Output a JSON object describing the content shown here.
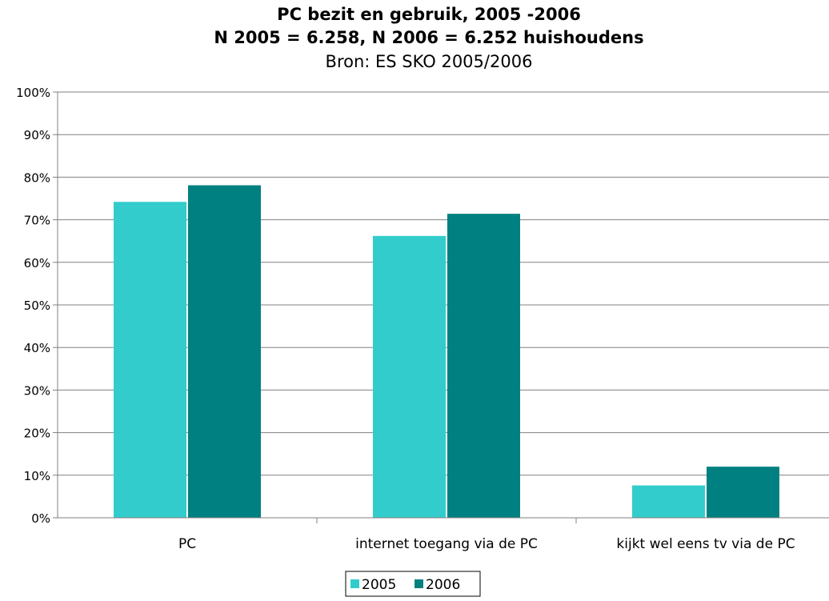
{
  "chart_data": {
    "type": "bar",
    "title": "PC bezit en gebruik, 2005 -2006",
    "subtitle": "N 2005 = 6.258, N 2006 = 6.252 huishoudens",
    "source": "Bron: ES SKO 2005/2006",
    "categories": [
      "PC",
      "internet toegang via de PC",
      "kijkt wel eens tv via de PC"
    ],
    "series": [
      {
        "name": "2005",
        "values": [
          74.2,
          66.2,
          7.6
        ],
        "color": "#33CCCC"
      },
      {
        "name": "2006",
        "values": [
          78.1,
          71.4,
          12.0
        ],
        "color": "#008080"
      }
    ],
    "y_ticks": [
      "0%",
      "10%",
      "20%",
      "30%",
      "40%",
      "50%",
      "60%",
      "70%",
      "80%",
      "90%",
      "100%"
    ],
    "ylim": [
      0,
      100
    ],
    "grid": true,
    "legend_position": "bottom-center"
  }
}
